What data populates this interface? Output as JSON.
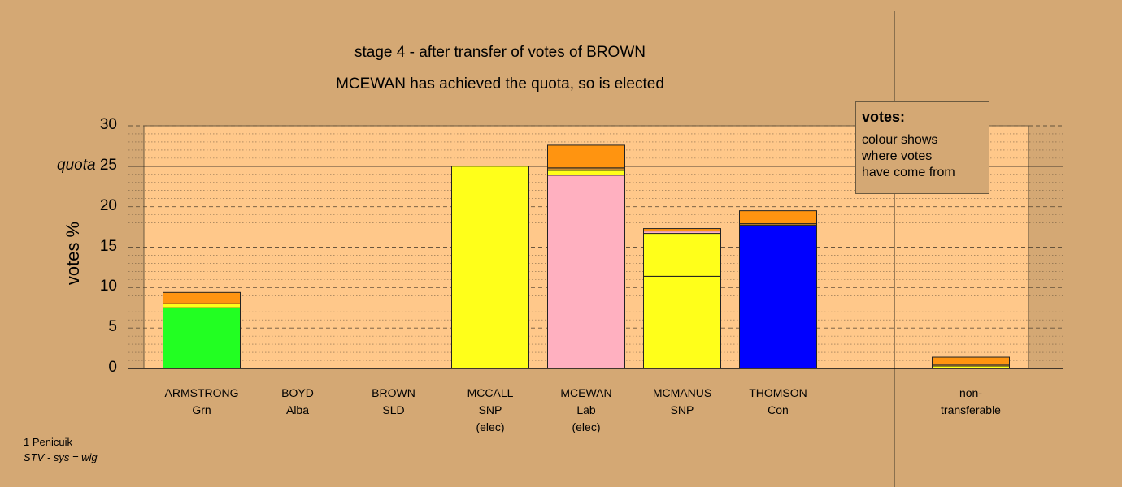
{
  "title_line1": "stage 4 - after transfer of votes of BROWN",
  "title_line2": "MCEWAN has achieved the quota, so is elected",
  "legend": {
    "title": "votes:",
    "lines": [
      "colour shows",
      "where votes",
      "have come from"
    ]
  },
  "footer": {
    "line1": "1 Penicuik",
    "line2": "STV - sys = wig"
  },
  "chart_data": {
    "type": "bar",
    "stacked": true,
    "ylabel": "votes %",
    "ylim": [
      0,
      30
    ],
    "yticks": [
      0,
      5,
      10,
      15,
      20,
      25,
      30
    ],
    "quota": 25,
    "quota_label": "quota",
    "grid": "minor dotted every 1, major dashed every 5",
    "legend_position": "top-right",
    "candidates": [
      {
        "name": "ARMSTRONG",
        "party": "Grn",
        "note": "",
        "segments": [
          {
            "value": 7.5,
            "color": "#22ff22"
          },
          {
            "value": 0.5,
            "color": "#ffff1a"
          },
          {
            "value": 1.4,
            "color": "#ff9410"
          }
        ]
      },
      {
        "name": "BOYD",
        "party": "Alba",
        "note": "",
        "segments": []
      },
      {
        "name": "BROWN",
        "party": "SLD",
        "note": "",
        "segments": []
      },
      {
        "name": "MCCALL",
        "party": "SNP",
        "note": "(elec)",
        "segments": [
          {
            "value": 25.0,
            "color": "#ffff1a"
          }
        ]
      },
      {
        "name": "MCEWAN",
        "party": "Lab",
        "note": "(elec)",
        "segments": [
          {
            "value": 23.9,
            "color": "#ffb0c0"
          },
          {
            "value": 0.6,
            "color": "#ffff1a"
          },
          {
            "value": 0.3,
            "color": "#cc8a30"
          },
          {
            "value": 2.8,
            "color": "#ff9410"
          }
        ]
      },
      {
        "name": "MCMANUS",
        "party": "SNP",
        "note": "",
        "segments": [
          {
            "value": 11.4,
            "color": "#ffff1a"
          },
          {
            "value": 5.3,
            "color": "#ffff1a"
          },
          {
            "value": 0.3,
            "color": "#ffb0c0"
          },
          {
            "value": 0.3,
            "color": "#ff9410"
          }
        ]
      },
      {
        "name": "THOMSON",
        "party": "Con",
        "note": "",
        "segments": [
          {
            "value": 17.7,
            "color": "#0000ff"
          },
          {
            "value": 0.2,
            "color": "#cc8a30"
          },
          {
            "value": 1.6,
            "color": "#ff9410"
          }
        ]
      }
    ],
    "nontransferable": {
      "label_line1": "non-",
      "label_line2": "transferable",
      "segments": [
        {
          "value": 0.3,
          "color": "#ffff1a"
        },
        {
          "value": 0.2,
          "color": "#cc8a30"
        },
        {
          "value": 0.9,
          "color": "#ff9410"
        }
      ]
    },
    "colors": {
      "plot_background": "#ffc88a",
      "page_background": "#d4a874"
    }
  }
}
